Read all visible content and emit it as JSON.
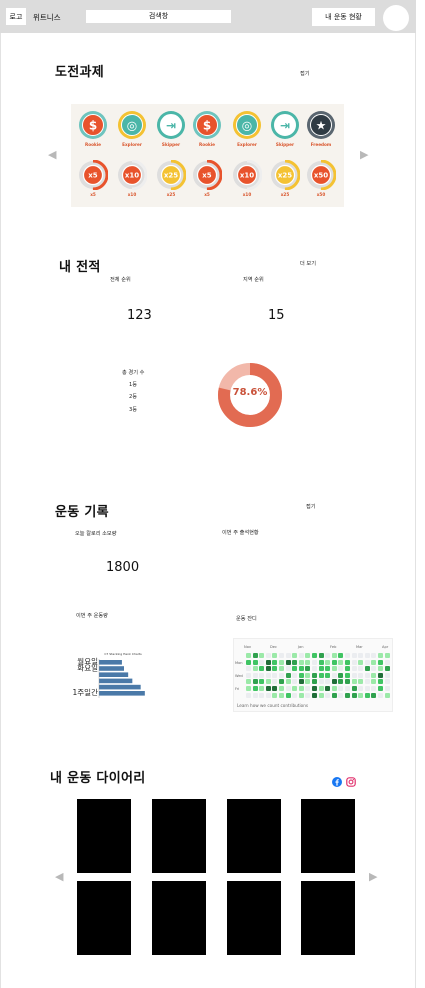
{
  "header": {
    "logo_label": "로고",
    "brand_name": "위트니스",
    "search_placeholder": "검색창",
    "status_button": "내 운동 현황"
  },
  "challenges": {
    "title": "도전과제",
    "toggle": "접기",
    "badges_row1": [
      "Rookie",
      "Explorer",
      "Skipper",
      "Rookie",
      "Explorer",
      "Skipper",
      "Freedom"
    ],
    "badges_row2": [
      "x5",
      "x10",
      "x25",
      "x5",
      "x10",
      "x25",
      "x50"
    ],
    "badges_row2_labels": [
      "x5",
      "x10",
      "x25",
      "x5",
      "x10",
      "x25",
      "x50"
    ]
  },
  "record": {
    "title": "내 전적",
    "more": "더 보기",
    "total_rank_label": "전체 순위",
    "total_rank_value": "123",
    "region_rank_label": "지역 순위",
    "region_rank_value": "15",
    "total_games_label": "총 경기 수",
    "place_1": "1등",
    "place_2": "2등",
    "place_3": "3등",
    "win_rate": "78.6%",
    "win_rate_fraction": 0.786
  },
  "exercise": {
    "title": "운동 기록",
    "toggle": "접기",
    "calories_label": "오늘 칼로리 소모량",
    "calories_value": "1800",
    "attendance_label": "이번 주 출석현황",
    "weekly_amount_label": "이번 주 운동량",
    "exercise_map_label": "운동 잔디",
    "contrib_months": [
      "Nov",
      "Dec",
      "Jan",
      "Feb",
      "Mar",
      "Apr"
    ],
    "contrib_days": [
      "Mon",
      "Wed",
      "Fri"
    ],
    "contrib_footer": "Learn how we count contributions"
  },
  "chart_data": {
    "type": "bar",
    "orientation": "horizontal",
    "title": "C7 Stacking Henk Charts",
    "categories": [
      "월요일",
      "화요일",
      "",
      "",
      "",
      "1주일간"
    ],
    "values": [
      55,
      60,
      70,
      80,
      100,
      110
    ],
    "category_labels": [
      "월요일",
      "화요일",
      "1주일간"
    ],
    "color": "#4a79a8"
  },
  "diary": {
    "title": "내 운동 다이어리",
    "facebook_icon": "facebook-icon",
    "instagram_icon": "instagram-icon"
  },
  "colors": {
    "badge_orange": "#e8532c",
    "badge_teal": "#4bb6a8",
    "badge_yellow": "#f4c233",
    "donut_main": "#e26b52",
    "donut_rest": "#f2b8aa",
    "contrib_green": "#2f9e44"
  }
}
